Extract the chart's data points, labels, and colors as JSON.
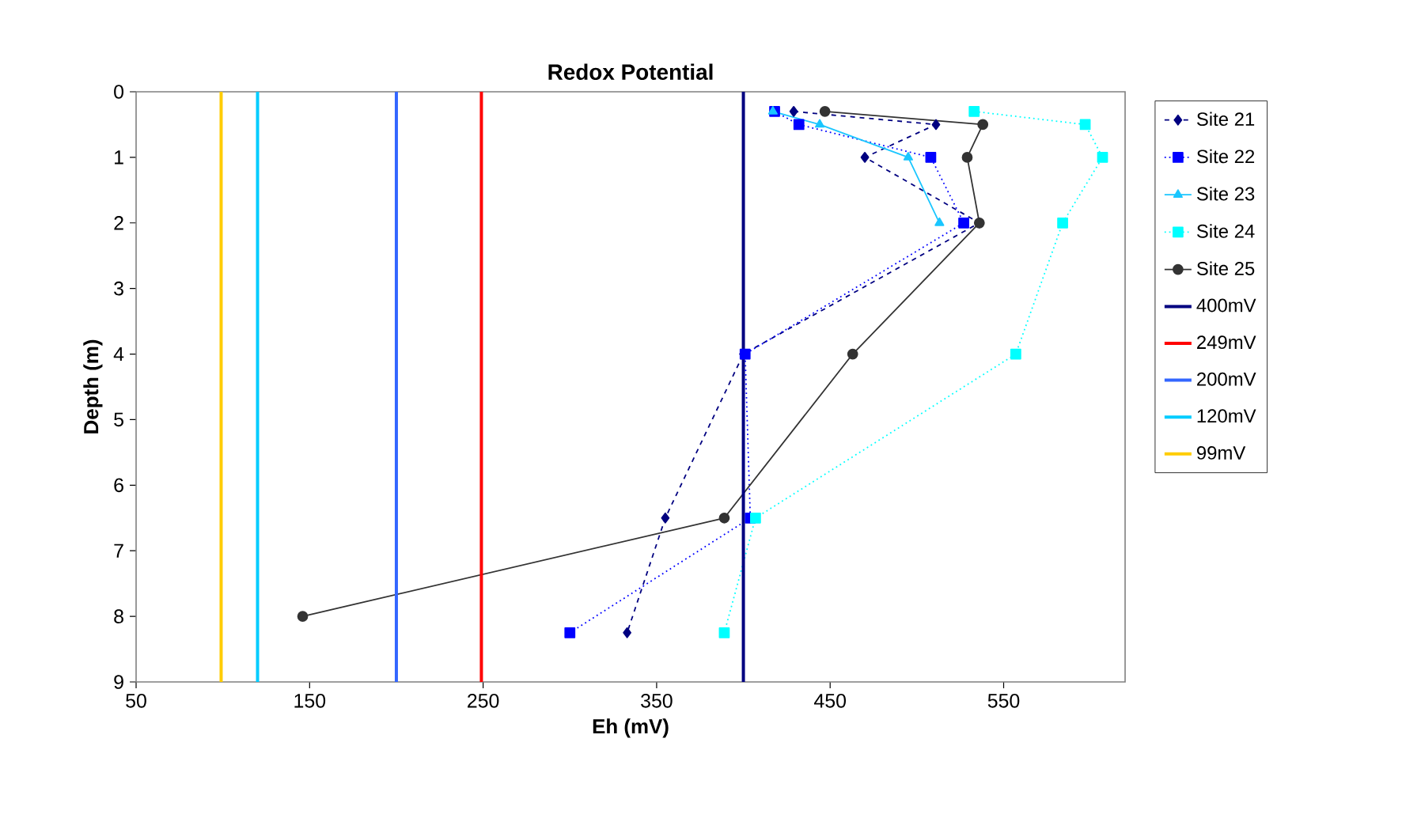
{
  "chart_data": {
    "type": "line",
    "title": "Redox Potential",
    "xlabel": "Eh (mV)",
    "ylabel": "Depth (m)",
    "xlim": [
      50,
      620
    ],
    "xticks": [
      50,
      150,
      250,
      350,
      450,
      550
    ],
    "ylim": [
      9,
      0
    ],
    "yticks": [
      0,
      1,
      2,
      3,
      4,
      5,
      6,
      7,
      8,
      9
    ],
    "grid": false,
    "legend": "right",
    "series": [
      {
        "name": "Site 21",
        "color": "#000080",
        "marker": "diamond",
        "line_style": "dashed",
        "x": [
          429,
          511,
          470,
          536,
          400,
          355,
          333
        ],
        "values": [
          0.3,
          0.5,
          1,
          2,
          4,
          6.5,
          8.25
        ]
      },
      {
        "name": "Site 22",
        "color": "#0000ff",
        "marker": "square",
        "line_style": "dotted",
        "x": [
          418,
          432,
          508,
          527,
          401,
          404,
          300
        ],
        "values": [
          0.3,
          0.5,
          1,
          2,
          4,
          6.5,
          8.25
        ]
      },
      {
        "name": "Site 23",
        "color": "#1ac6ff",
        "marker": "triangle",
        "line_style": "solid",
        "x": [
          417,
          444,
          495,
          513
        ],
        "values": [
          0.3,
          0.5,
          1,
          2
        ]
      },
      {
        "name": "Site 24",
        "color": "#00ffff",
        "marker": "square",
        "line_style": "dotted",
        "x": [
          533,
          597,
          607,
          584,
          557,
          407,
          389
        ],
        "values": [
          0.3,
          0.5,
          1,
          2,
          4,
          6.5,
          8.25
        ]
      },
      {
        "name": "Site 25",
        "color": "#333333",
        "marker": "circle",
        "line_style": "solid",
        "x": [
          447,
          538,
          529,
          536,
          463,
          389,
          146
        ],
        "values": [
          0.3,
          0.5,
          1,
          2,
          4,
          6.5,
          8
        ]
      },
      {
        "name": "400mV",
        "color": "#000080",
        "marker": "none",
        "line_style": "solid",
        "x": [
          400,
          400
        ],
        "values": [
          0,
          9
        ]
      },
      {
        "name": "249mV",
        "color": "#ff0000",
        "marker": "none",
        "line_style": "solid",
        "x": [
          249,
          249
        ],
        "values": [
          0,
          9
        ]
      },
      {
        "name": "200mV",
        "color": "#3366ff",
        "marker": "none",
        "line_style": "solid",
        "x": [
          200,
          200
        ],
        "values": [
          0,
          9
        ]
      },
      {
        "name": "120mV",
        "color": "#00ccff",
        "marker": "none",
        "line_style": "solid",
        "x": [
          120,
          120
        ],
        "values": [
          0,
          9
        ]
      },
      {
        "name": "99mV",
        "color": "#ffcc00",
        "marker": "none",
        "line_style": "solid",
        "x": [
          99,
          99
        ],
        "values": [
          0,
          9
        ]
      }
    ]
  }
}
